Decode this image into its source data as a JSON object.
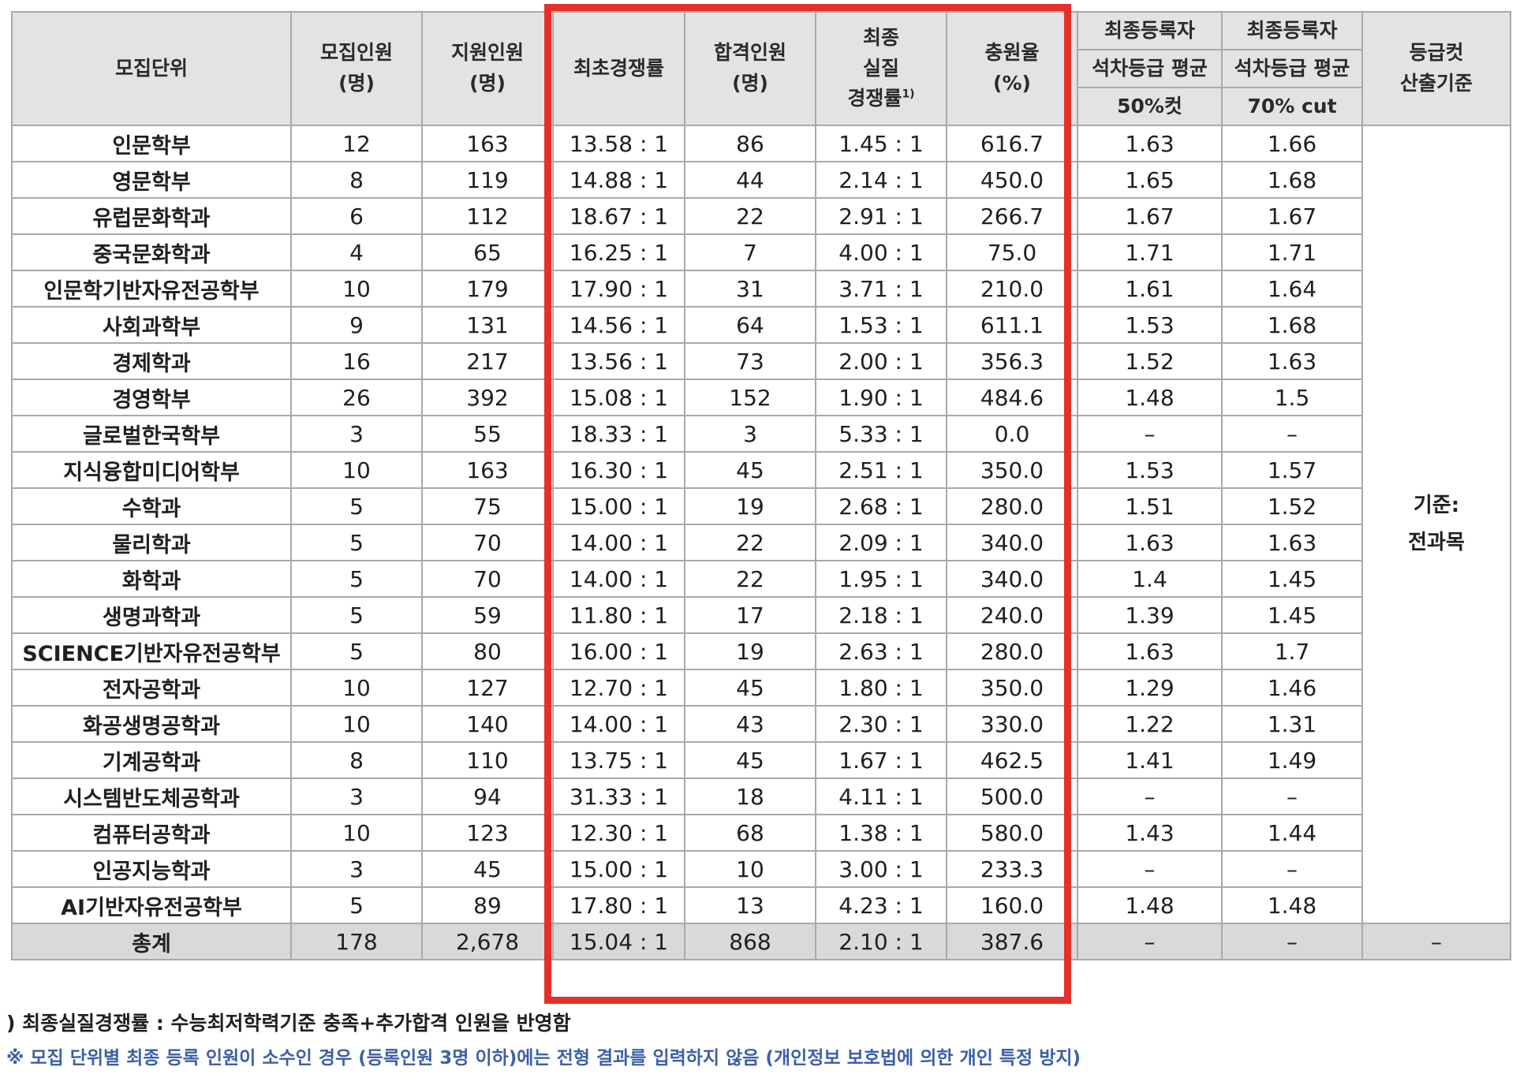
{
  "headers": {
    "unit": "모집단위",
    "recruit": [
      "모집인원",
      "(명)"
    ],
    "applicants": [
      "지원인원",
      "(명)"
    ],
    "initial_ratio": "최초경쟁률",
    "admitted": [
      "합격인원",
      "(명)"
    ],
    "final_ratio": [
      "최종",
      "실질",
      "경쟁률"
    ],
    "final_ratio_footnote": "1)",
    "fill_rate": [
      "충원율",
      "(%)"
    ],
    "reg50": [
      "최종등록자",
      "석차등급 평균",
      "50%컷"
    ],
    "reg70": [
      "최종등록자",
      "석차등급 평균",
      "70% cut"
    ],
    "cutoff": [
      "등급컷",
      "산출기준"
    ]
  },
  "cutoff_criteria": [
    "기준:",
    "전과목"
  ],
  "rows": [
    {
      "unit": "인문학부",
      "recruit": "12",
      "applicants": "163",
      "initial_ratio": "13.58 : 1",
      "admitted": "86",
      "final_ratio": "1.45 : 1",
      "fill_rate": "616.7",
      "cut50": "1.63",
      "cut70": "1.66"
    },
    {
      "unit": "영문학부",
      "recruit": "8",
      "applicants": "119",
      "initial_ratio": "14.88 : 1",
      "admitted": "44",
      "final_ratio": "2.14 : 1",
      "fill_rate": "450.0",
      "cut50": "1.65",
      "cut70": "1.68"
    },
    {
      "unit": "유럽문화학과",
      "recruit": "6",
      "applicants": "112",
      "initial_ratio": "18.67 : 1",
      "admitted": "22",
      "final_ratio": "2.91 : 1",
      "fill_rate": "266.7",
      "cut50": "1.67",
      "cut70": "1.67"
    },
    {
      "unit": "중국문화학과",
      "recruit": "4",
      "applicants": "65",
      "initial_ratio": "16.25 : 1",
      "admitted": "7",
      "final_ratio": "4.00 : 1",
      "fill_rate": "75.0",
      "cut50": "1.71",
      "cut70": "1.71"
    },
    {
      "unit": "인문학기반자유전공학부",
      "recruit": "10",
      "applicants": "179",
      "initial_ratio": "17.90 : 1",
      "admitted": "31",
      "final_ratio": "3.71 : 1",
      "fill_rate": "210.0",
      "cut50": "1.61",
      "cut70": "1.64"
    },
    {
      "unit": "사회과학부",
      "recruit": "9",
      "applicants": "131",
      "initial_ratio": "14.56 : 1",
      "admitted": "64",
      "final_ratio": "1.53 : 1",
      "fill_rate": "611.1",
      "cut50": "1.53",
      "cut70": "1.68"
    },
    {
      "unit": "경제학과",
      "recruit": "16",
      "applicants": "217",
      "initial_ratio": "13.56 : 1",
      "admitted": "73",
      "final_ratio": "2.00 : 1",
      "fill_rate": "356.3",
      "cut50": "1.52",
      "cut70": "1.63"
    },
    {
      "unit": "경영학부",
      "recruit": "26",
      "applicants": "392",
      "initial_ratio": "15.08 : 1",
      "admitted": "152",
      "final_ratio": "1.90 : 1",
      "fill_rate": "484.6",
      "cut50": "1.48",
      "cut70": "1.5"
    },
    {
      "unit": "글로벌한국학부",
      "recruit": "3",
      "applicants": "55",
      "initial_ratio": "18.33 : 1",
      "admitted": "3",
      "final_ratio": "5.33 : 1",
      "fill_rate": "0.0",
      "cut50": "–",
      "cut70": "–"
    },
    {
      "unit": "지식융합미디어학부",
      "recruit": "10",
      "applicants": "163",
      "initial_ratio": "16.30 : 1",
      "admitted": "45",
      "final_ratio": "2.51 : 1",
      "fill_rate": "350.0",
      "cut50": "1.53",
      "cut70": "1.57"
    },
    {
      "unit": "수학과",
      "recruit": "5",
      "applicants": "75",
      "initial_ratio": "15.00 : 1",
      "admitted": "19",
      "final_ratio": "2.68 : 1",
      "fill_rate": "280.0",
      "cut50": "1.51",
      "cut70": "1.52"
    },
    {
      "unit": "물리학과",
      "recruit": "5",
      "applicants": "70",
      "initial_ratio": "14.00 : 1",
      "admitted": "22",
      "final_ratio": "2.09 : 1",
      "fill_rate": "340.0",
      "cut50": "1.63",
      "cut70": "1.63"
    },
    {
      "unit": "화학과",
      "recruit": "5",
      "applicants": "70",
      "initial_ratio": "14.00 : 1",
      "admitted": "22",
      "final_ratio": "1.95 : 1",
      "fill_rate": "340.0",
      "cut50": "1.4",
      "cut70": "1.45"
    },
    {
      "unit": "생명과학과",
      "recruit": "5",
      "applicants": "59",
      "initial_ratio": "11.80 : 1",
      "admitted": "17",
      "final_ratio": "2.18 : 1",
      "fill_rate": "240.0",
      "cut50": "1.39",
      "cut70": "1.45"
    },
    {
      "unit": "SCIENCE기반자유전공학부",
      "recruit": "5",
      "applicants": "80",
      "initial_ratio": "16.00 : 1",
      "admitted": "19",
      "final_ratio": "2.63 : 1",
      "fill_rate": "280.0",
      "cut50": "1.63",
      "cut70": "1.7"
    },
    {
      "unit": "전자공학과",
      "recruit": "10",
      "applicants": "127",
      "initial_ratio": "12.70 : 1",
      "admitted": "45",
      "final_ratio": "1.80 : 1",
      "fill_rate": "350.0",
      "cut50": "1.29",
      "cut70": "1.46"
    },
    {
      "unit": "화공생명공학과",
      "recruit": "10",
      "applicants": "140",
      "initial_ratio": "14.00 : 1",
      "admitted": "43",
      "final_ratio": "2.30 : 1",
      "fill_rate": "330.0",
      "cut50": "1.22",
      "cut70": "1.31"
    },
    {
      "unit": "기계공학과",
      "recruit": "8",
      "applicants": "110",
      "initial_ratio": "13.75 : 1",
      "admitted": "45",
      "final_ratio": "1.67 : 1",
      "fill_rate": "462.5",
      "cut50": "1.41",
      "cut70": "1.49"
    },
    {
      "unit": "시스템반도체공학과",
      "recruit": "3",
      "applicants": "94",
      "initial_ratio": "31.33 : 1",
      "admitted": "18",
      "final_ratio": "4.11 : 1",
      "fill_rate": "500.0",
      "cut50": "–",
      "cut70": "–"
    },
    {
      "unit": "컴퓨터공학과",
      "recruit": "10",
      "applicants": "123",
      "initial_ratio": "12.30 : 1",
      "admitted": "68",
      "final_ratio": "1.38 : 1",
      "fill_rate": "580.0",
      "cut50": "1.43",
      "cut70": "1.44"
    },
    {
      "unit": "인공지능학과",
      "recruit": "3",
      "applicants": "45",
      "initial_ratio": "15.00 : 1",
      "admitted": "10",
      "final_ratio": "3.00 : 1",
      "fill_rate": "233.3",
      "cut50": "–",
      "cut70": "–"
    },
    {
      "unit": "AI기반자유전공학부",
      "recruit": "5",
      "applicants": "89",
      "initial_ratio": "17.80 : 1",
      "admitted": "13",
      "final_ratio": "4.23 : 1",
      "fill_rate": "160.0",
      "cut50": "1.48",
      "cut70": "1.48"
    }
  ],
  "total": {
    "unit": "총계",
    "recruit": "178",
    "applicants": "2,678",
    "initial_ratio": "15.04 : 1",
    "admitted": "868",
    "final_ratio": "2.10 : 1",
    "fill_rate": "387.6",
    "cut50": "–",
    "cut70": "–",
    "cutoff": "–"
  },
  "notes": {
    "footnote": ") 최종실질경쟁률 : 수능최저학력기준 충족+추가합격 인원을 반영함",
    "privacy": "※ 모집 단위별 최종 등록 인원이 소수인 경우 (등록인원 3명 이하)에는 전형 결과를 입력하지 않음 (개인정보 보호법에 의한 개인 특정 방지)"
  },
  "colors": {
    "highlight": "#e5302a",
    "header_bg": "#e3e3e3",
    "total_bg": "#d9d9d9",
    "note_blue": "#3d5fa8"
  }
}
